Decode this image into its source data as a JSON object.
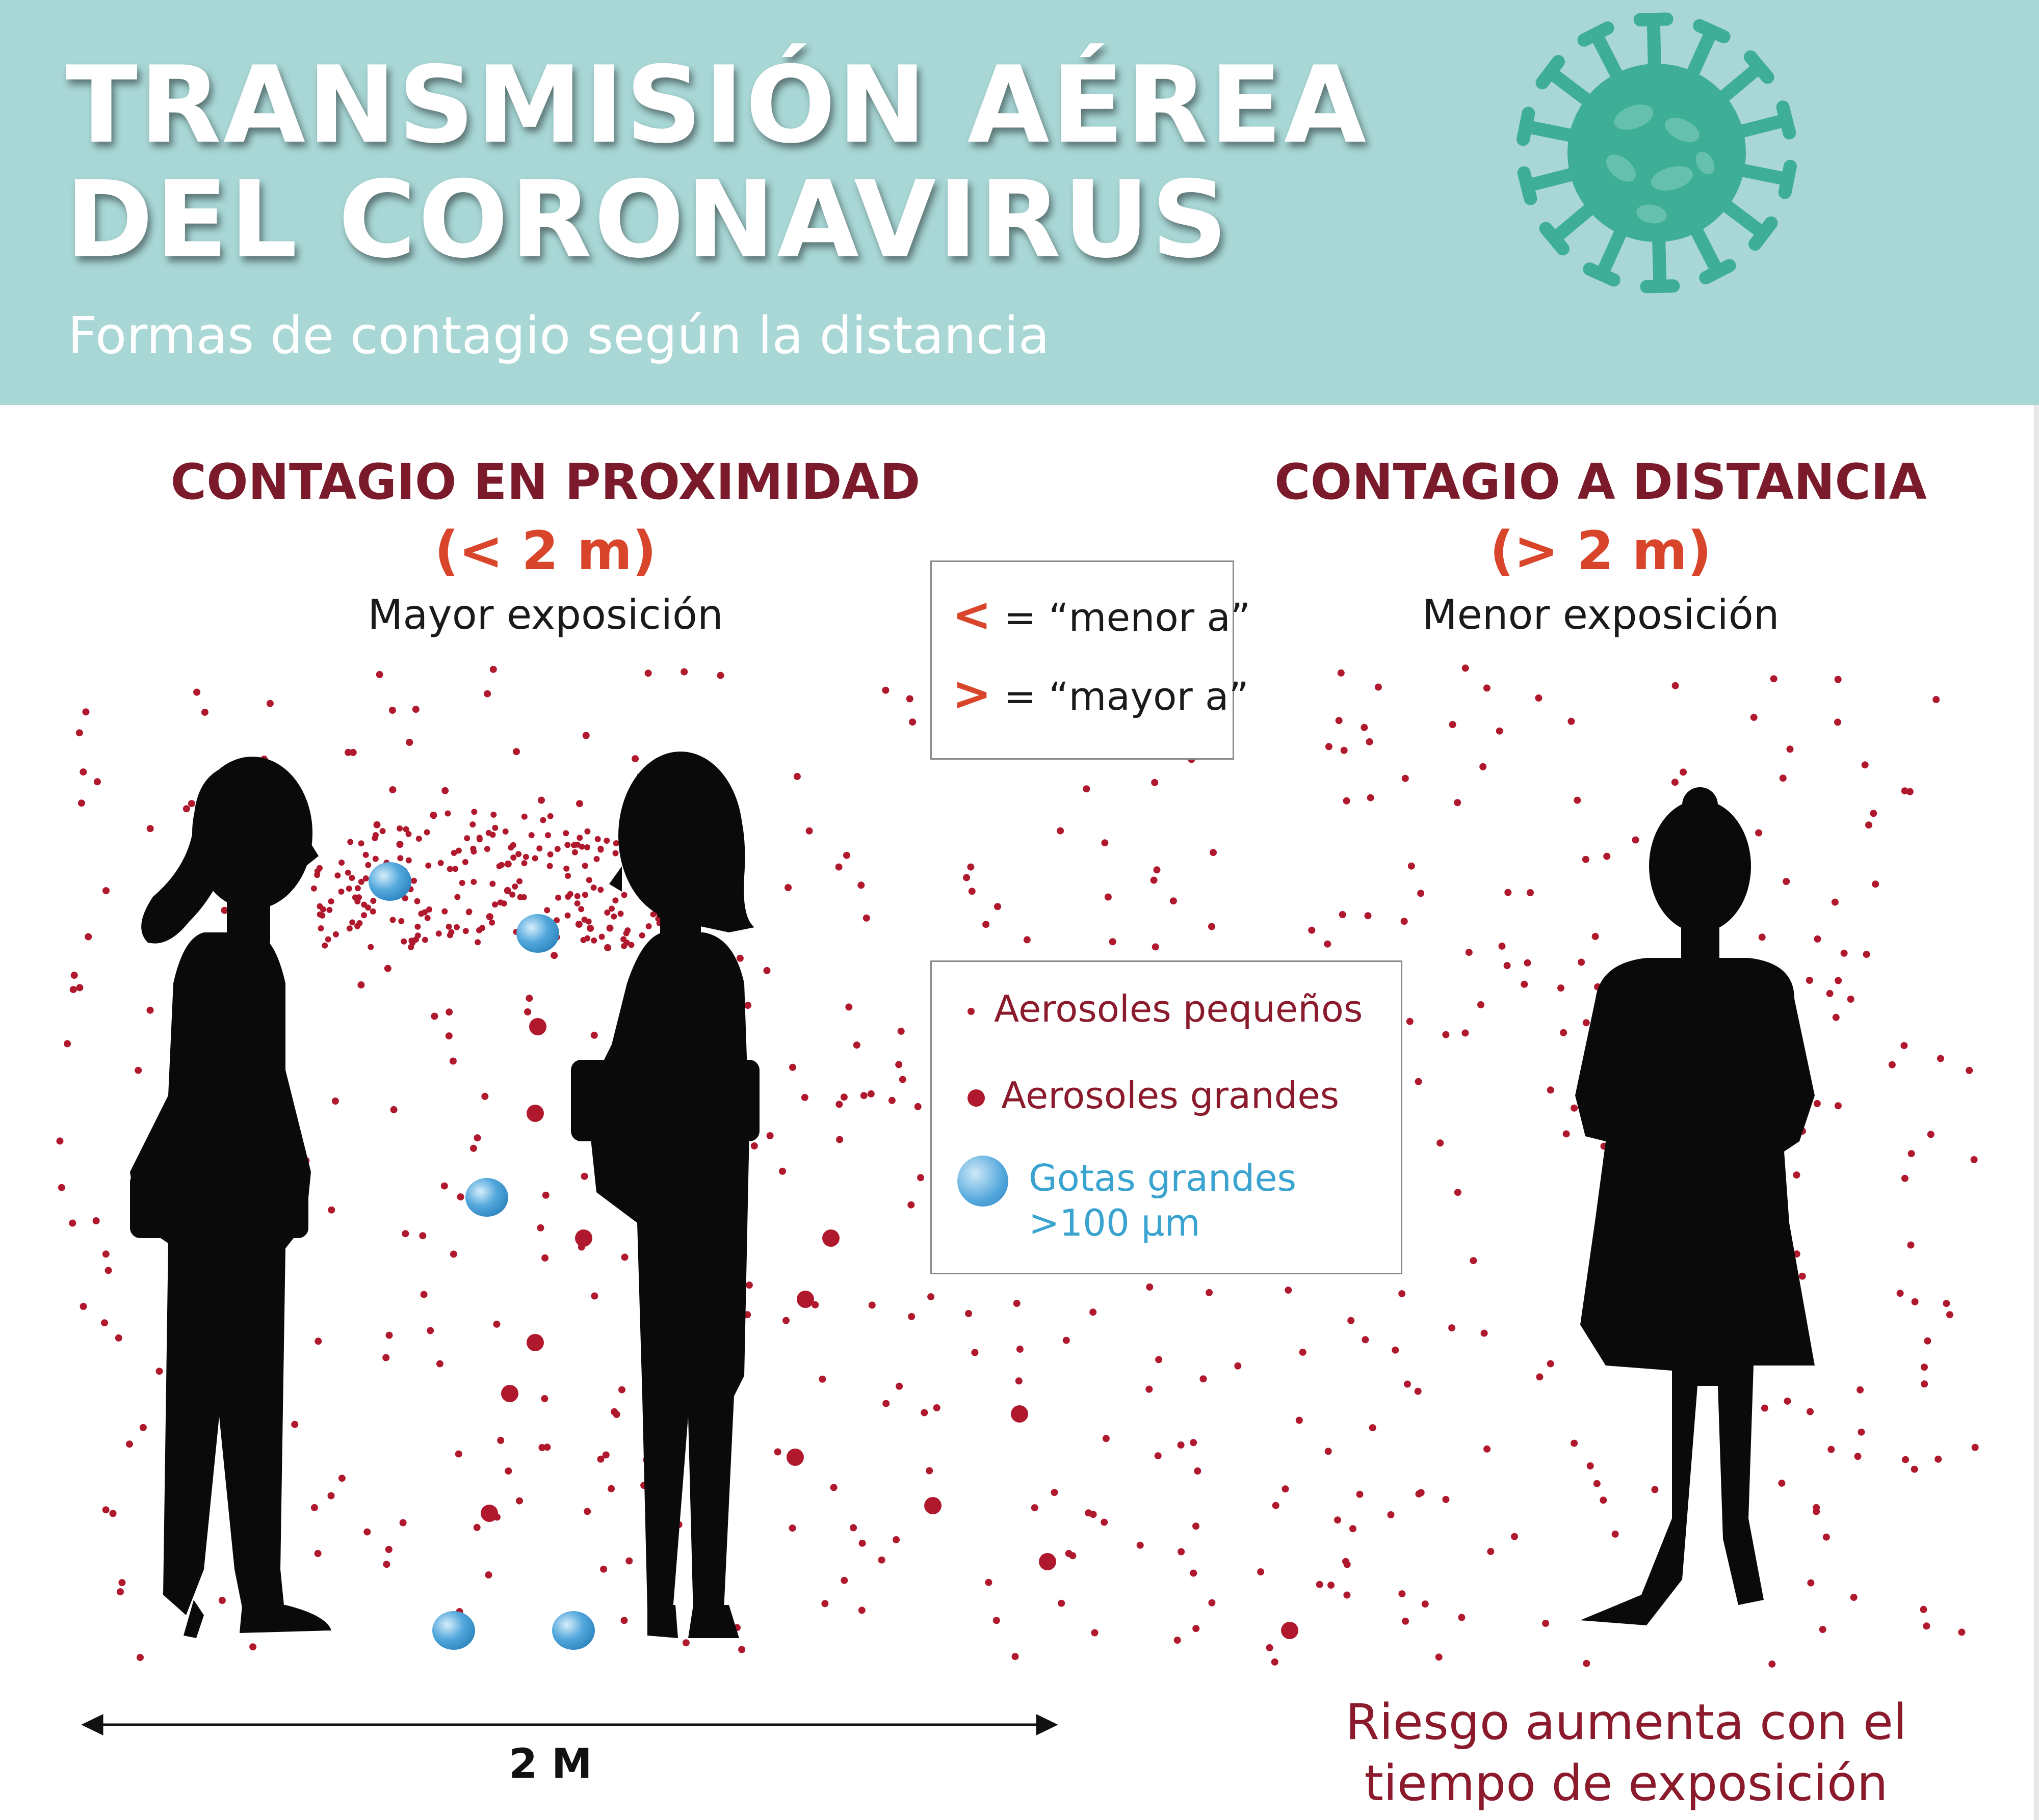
{
  "header": {
    "title_line1": "TRANSMISIÓN AÉREA",
    "title_line2": "DEL CORONAVIRUS",
    "subtitle": "Formas de contagio según la distancia"
  },
  "proximity": {
    "heading": "CONTAGIO EN PROXIMIDAD",
    "range": "(< 2 m)",
    "exposure": "Mayor exposición"
  },
  "distance": {
    "heading": "CONTAGIO A DISTANCIA",
    "range": "(> 2 m)",
    "exposure": "Menor exposición"
  },
  "symbols": {
    "less_symbol": "<",
    "less_text": "= “menor a”",
    "greater_symbol": ">",
    "greater_text": "= “mayor a”"
  },
  "legend": {
    "small_aerosols": "Aerosoles pequeños",
    "large_aerosols": "Aerosoles grandes",
    "large_drops_line1": "Gotas grandes",
    "large_drops_line2": ">100 µm"
  },
  "distance_marker": "2 M",
  "risk_note": "Riesgo aumenta con el tiempo de exposición",
  "colors": {
    "header_bg": "#a8d7d6",
    "virus": "#3fae97",
    "heading": "#7b1a2a",
    "accent": "#d8452b",
    "aerosol": "#b0192d",
    "drop": "#52a7dc",
    "silhouette": "#0a0a0a"
  },
  "icons": [
    "virus-icon",
    "woman-silhouette-icon",
    "arrow-left-icon",
    "arrow-right-icon"
  ]
}
